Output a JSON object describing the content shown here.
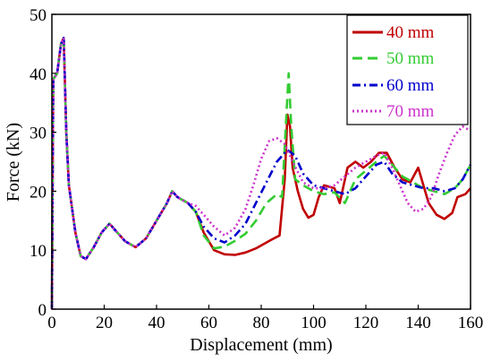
{
  "chart_data": {
    "type": "line",
    "title": "",
    "xlabel": "Displacement (mm)",
    "ylabel": "Force (kN)",
    "xlim": [
      0,
      160
    ],
    "ylim": [
      0,
      50
    ],
    "xticks": [
      0,
      20,
      40,
      60,
      80,
      100,
      120,
      140,
      160
    ],
    "yticks": [
      0,
      10,
      20,
      30,
      40,
      50
    ],
    "grid": false,
    "legend_position": "top-right",
    "series": [
      {
        "name": "40 mm",
        "color": "#c00000",
        "dash": "solid",
        "points": [
          [
            0,
            0
          ],
          [
            0.5,
            39
          ],
          [
            2,
            40
          ],
          [
            3.5,
            45
          ],
          [
            4.5,
            46
          ],
          [
            5.5,
            30
          ],
          [
            6.5,
            21
          ],
          [
            9,
            13
          ],
          [
            11,
            9
          ],
          [
            13,
            8.5
          ],
          [
            16,
            10.5
          ],
          [
            19,
            13
          ],
          [
            22,
            14.5
          ],
          [
            25,
            13
          ],
          [
            28,
            11.5
          ],
          [
            32,
            10.5
          ],
          [
            36,
            12
          ],
          [
            40,
            15
          ],
          [
            44,
            18
          ],
          [
            46,
            20
          ],
          [
            48,
            19
          ],
          [
            52,
            18
          ],
          [
            55,
            16.5
          ],
          [
            58,
            13
          ],
          [
            62,
            10
          ],
          [
            66,
            9.3
          ],
          [
            70,
            9.2
          ],
          [
            74,
            9.6
          ],
          [
            78,
            10.3
          ],
          [
            84,
            11.8
          ],
          [
            87,
            12.5
          ],
          [
            89,
            22
          ],
          [
            90,
            33
          ],
          [
            91,
            31
          ],
          [
            92,
            24
          ],
          [
            94,
            20
          ],
          [
            96,
            17
          ],
          [
            98,
            15.5
          ],
          [
            100,
            16
          ],
          [
            102,
            19
          ],
          [
            104,
            21
          ],
          [
            108,
            20.5
          ],
          [
            110,
            18
          ],
          [
            113,
            24
          ],
          [
            116,
            25
          ],
          [
            119,
            24
          ],
          [
            122,
            25
          ],
          [
            125,
            26.5
          ],
          [
            128,
            26.5
          ],
          [
            131,
            24
          ],
          [
            134,
            22
          ],
          [
            137,
            21.5
          ],
          [
            140,
            24
          ],
          [
            142,
            21
          ],
          [
            144,
            18
          ],
          [
            147,
            16
          ],
          [
            150,
            15.3
          ],
          [
            153,
            16.3
          ],
          [
            155,
            19
          ],
          [
            158,
            19.5
          ],
          [
            160,
            20.5
          ]
        ]
      },
      {
        "name": "50 mm",
        "color": "#33cc33",
        "dash": "long-dash",
        "points": [
          [
            0,
            0
          ],
          [
            0.5,
            39
          ],
          [
            2,
            40
          ],
          [
            3.5,
            45
          ],
          [
            4.5,
            46
          ],
          [
            5.5,
            30
          ],
          [
            6.5,
            21
          ],
          [
            9,
            13
          ],
          [
            11,
            9
          ],
          [
            13,
            8.5
          ],
          [
            16,
            10.5
          ],
          [
            19,
            13
          ],
          [
            22,
            14.5
          ],
          [
            25,
            13
          ],
          [
            28,
            11.5
          ],
          [
            32,
            10.5
          ],
          [
            36,
            12
          ],
          [
            40,
            15
          ],
          [
            44,
            18
          ],
          [
            46,
            20
          ],
          [
            48,
            19
          ],
          [
            52,
            18
          ],
          [
            55,
            16.5
          ],
          [
            58,
            12.5
          ],
          [
            62,
            10.3
          ],
          [
            66,
            10.6
          ],
          [
            70,
            11.6
          ],
          [
            74,
            12.8
          ],
          [
            78,
            15
          ],
          [
            82,
            18
          ],
          [
            86,
            19.5
          ],
          [
            88,
            19
          ],
          [
            89.5,
            32
          ],
          [
            90.5,
            40
          ],
          [
            91.5,
            31
          ],
          [
            93,
            22
          ],
          [
            96,
            21
          ],
          [
            100,
            20
          ],
          [
            104,
            19.5
          ],
          [
            108,
            19.8
          ],
          [
            112,
            18
          ],
          [
            116,
            22
          ],
          [
            120,
            23.5
          ],
          [
            124,
            25
          ],
          [
            127,
            26
          ],
          [
            130,
            24.5
          ],
          [
            134,
            22.5
          ],
          [
            138,
            21.5
          ],
          [
            142,
            20.5
          ],
          [
            146,
            20
          ],
          [
            150,
            19.5
          ],
          [
            154,
            20.5
          ],
          [
            157,
            22
          ],
          [
            160,
            24.5
          ]
        ]
      },
      {
        "name": "60 mm",
        "color": "#0000cc",
        "dash": "dash-dot",
        "points": [
          [
            0,
            0
          ],
          [
            0.5,
            39
          ],
          [
            2,
            40
          ],
          [
            3.5,
            45
          ],
          [
            4.5,
            46
          ],
          [
            5.5,
            30
          ],
          [
            6.5,
            21
          ],
          [
            9,
            13
          ],
          [
            11,
            9
          ],
          [
            13,
            8.5
          ],
          [
            16,
            10.5
          ],
          [
            19,
            13
          ],
          [
            22,
            14.5
          ],
          [
            25,
            13
          ],
          [
            28,
            11.5
          ],
          [
            32,
            10.5
          ],
          [
            36,
            12
          ],
          [
            40,
            15
          ],
          [
            44,
            18
          ],
          [
            46,
            20
          ],
          [
            48,
            19
          ],
          [
            52,
            18
          ],
          [
            55,
            16.5
          ],
          [
            58,
            14
          ],
          [
            62,
            12
          ],
          [
            66,
            11.3
          ],
          [
            70,
            12.5
          ],
          [
            74,
            14.5
          ],
          [
            78,
            18
          ],
          [
            82,
            21.5
          ],
          [
            86,
            25
          ],
          [
            90,
            27
          ],
          [
            93,
            26
          ],
          [
            96,
            23
          ],
          [
            100,
            21
          ],
          [
            104,
            20.5
          ],
          [
            108,
            20
          ],
          [
            112,
            19.5
          ],
          [
            116,
            20.5
          ],
          [
            120,
            22.5
          ],
          [
            124,
            24.5
          ],
          [
            127,
            25
          ],
          [
            130,
            23
          ],
          [
            134,
            21.5
          ],
          [
            138,
            21
          ],
          [
            142,
            20.5
          ],
          [
            146,
            20.5
          ],
          [
            150,
            20
          ],
          [
            154,
            20.5
          ],
          [
            157,
            22
          ],
          [
            160,
            24.5
          ]
        ]
      },
      {
        "name": "70 mm",
        "color": "#cc33cc",
        "dash": "dotted",
        "points": [
          [
            0,
            0
          ],
          [
            0.5,
            39
          ],
          [
            2,
            40
          ],
          [
            3.5,
            45
          ],
          [
            4.5,
            46
          ],
          [
            5.5,
            30
          ],
          [
            6.5,
            21
          ],
          [
            9,
            13
          ],
          [
            11,
            9
          ],
          [
            13,
            8.5
          ],
          [
            16,
            10.5
          ],
          [
            19,
            13
          ],
          [
            22,
            14.5
          ],
          [
            25,
            13
          ],
          [
            28,
            11.5
          ],
          [
            32,
            10.5
          ],
          [
            36,
            12
          ],
          [
            40,
            15
          ],
          [
            44,
            18
          ],
          [
            46,
            20
          ],
          [
            48,
            19
          ],
          [
            52,
            18
          ],
          [
            55,
            17.5
          ],
          [
            58,
            16
          ],
          [
            62,
            14
          ],
          [
            66,
            12.5
          ],
          [
            70,
            13.8
          ],
          [
            74,
            17
          ],
          [
            77,
            21
          ],
          [
            80,
            25.5
          ],
          [
            83,
            28.5
          ],
          [
            86,
            29
          ],
          [
            89,
            28
          ],
          [
            92,
            25
          ],
          [
            96,
            21.5
          ],
          [
            100,
            20.5
          ],
          [
            104,
            20.5
          ],
          [
            108,
            21
          ],
          [
            112,
            22.5
          ],
          [
            116,
            24
          ],
          [
            120,
            25
          ],
          [
            124,
            26
          ],
          [
            127,
            26.5
          ],
          [
            130,
            24
          ],
          [
            133,
            21
          ],
          [
            136,
            18
          ],
          [
            139,
            16.5
          ],
          [
            142,
            17
          ],
          [
            145,
            19
          ],
          [
            148,
            23
          ],
          [
            151,
            26.5
          ],
          [
            154,
            29.5
          ],
          [
            157,
            31
          ],
          [
            159,
            30.5
          ]
        ]
      }
    ]
  }
}
